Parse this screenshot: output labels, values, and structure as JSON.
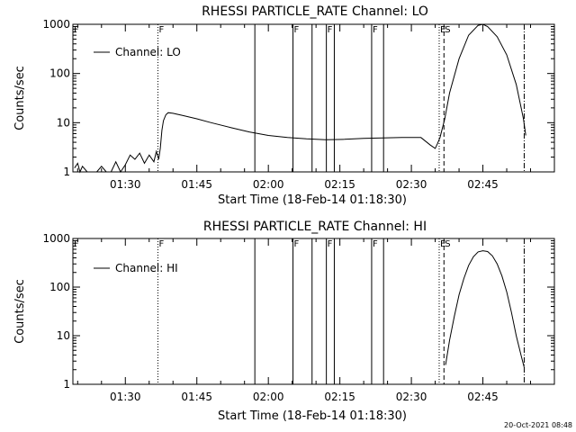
{
  "footer_timestamp": "20-Oct-2021 08:48",
  "marker_labels": {
    "F": "F",
    "E": "E",
    "S": "S"
  },
  "chart_data": [
    {
      "type": "line",
      "title": "RHESSI PARTICLE_RATE Channel: LO",
      "xlabel": "Start Time (18-Feb-14 01:18:30)",
      "ylabel": "Counts/sec",
      "yscale": "log",
      "ylim": [
        1,
        1000
      ],
      "y_ticks": [
        "1",
        "10",
        "100",
        "1000"
      ],
      "xlim": [
        "01:19:00",
        "03:00:00"
      ],
      "x_tick_labels": [
        "01:30",
        "01:45",
        "02:00",
        "02:15",
        "02:30",
        "02:45"
      ],
      "legend": {
        "label": "Channel: LO",
        "position": "top-left"
      },
      "series": [
        {
          "name": "Channel: LO",
          "x": [
            "01:19:20",
            "01:20:00",
            "01:20:30",
            "01:21:00",
            "01:22:00",
            "01:23:00",
            "01:24:00",
            "01:25:00",
            "01:26:00",
            "01:27:00",
            "01:28:00",
            "01:29:00",
            "01:30:00",
            "01:31:00",
            "01:32:00",
            "01:33:00",
            "01:34:00",
            "01:35:00",
            "01:36:00",
            "01:36:30",
            "01:37:00",
            "01:37:20",
            "01:37:40",
            "01:38:00",
            "01:38:30",
            "01:39:00",
            "01:40:00",
            "01:42:00",
            "01:45:00",
            "01:48:00",
            "01:52:00",
            "01:56:00",
            "02:00:00",
            "02:04:00",
            "02:08:00",
            "02:12:00",
            "02:16:00",
            "02:20:00",
            "02:24:00",
            "02:28:00",
            "02:32:00",
            "02:34:00",
            "02:35:00",
            "02:35:30",
            "02:36:00",
            "02:37:00",
            "02:38:00",
            "02:40:00",
            "02:42:00",
            "02:44:00",
            "02:45:00",
            "02:46:00",
            "02:48:00",
            "02:50:00",
            "02:52:00",
            "02:53:30",
            "02:54:00"
          ],
          "y": [
            1.2,
            1.5,
            1.0,
            1.3,
            1.0,
            1.0,
            1.0,
            1.3,
            1.0,
            1.0,
            1.6,
            1.0,
            1.4,
            2.2,
            1.8,
            2.4,
            1.5,
            2.2,
            1.6,
            2.6,
            1.8,
            3.0,
            7.0,
            11.0,
            14.5,
            16.0,
            15.5,
            14.0,
            12.0,
            10.0,
            8.0,
            6.5,
            5.5,
            5.0,
            4.7,
            4.5,
            4.6,
            4.8,
            4.9,
            5.0,
            5.0,
            3.5,
            3.0,
            3.8,
            5.0,
            12.0,
            40.0,
            200.0,
            600.0,
            950.0,
            1000.0,
            900.0,
            560.0,
            240.0,
            60.0,
            12.0,
            5.5
          ]
        }
      ],
      "vertical_lines": [
        {
          "style": "dotted",
          "x": "01:36:50",
          "label": "F"
        },
        {
          "style": "solid",
          "x": "01:57:10"
        },
        {
          "style": "solid",
          "x": "02:05:10",
          "label": "F"
        },
        {
          "style": "solid",
          "x": "02:09:10"
        },
        {
          "style": "solid",
          "x": "02:12:10",
          "label": "F"
        },
        {
          "style": "solid",
          "x": "02:13:50"
        },
        {
          "style": "solid",
          "x": "02:21:40",
          "label": "F"
        },
        {
          "style": "solid",
          "x": "02:24:10"
        },
        {
          "style": "dotted",
          "x": "02:35:50",
          "label": "E"
        },
        {
          "style": "dashed",
          "x": "02:36:50",
          "label": "S"
        },
        {
          "style": "dashdot",
          "x": "02:53:40"
        }
      ],
      "left_edge_marker": "F"
    },
    {
      "type": "line",
      "title": "RHESSI PARTICLE_RATE Channel: HI",
      "xlabel": "Start Time (18-Feb-14 01:18:30)",
      "ylabel": "Counts/sec",
      "yscale": "log",
      "ylim": [
        1,
        1000
      ],
      "y_ticks": [
        "1",
        "10",
        "100",
        "1000"
      ],
      "xlim": [
        "01:19:00",
        "03:00:00"
      ],
      "x_tick_labels": [
        "01:30",
        "01:45",
        "02:00",
        "02:15",
        "02:30",
        "02:45"
      ],
      "legend": {
        "label": "Channel: HI",
        "position": "top-left"
      },
      "series": [
        {
          "name": "Channel: HI",
          "x": [
            "02:37:10",
            "02:38:00",
            "02:39:00",
            "02:40:00",
            "02:41:00",
            "02:42:00",
            "02:43:00",
            "02:44:00",
            "02:45:00",
            "02:46:00",
            "02:47:00",
            "02:48:00",
            "02:49:00",
            "02:50:00",
            "02:51:00",
            "02:52:00",
            "02:53:00",
            "02:53:40"
          ],
          "y": [
            2.5,
            8.0,
            25.0,
            70.0,
            150.0,
            280.0,
            420.0,
            530.0,
            560.0,
            540.0,
            440.0,
            300.0,
            170.0,
            80.0,
            30.0,
            10.0,
            4.0,
            2.2
          ]
        }
      ],
      "vertical_lines": [
        {
          "style": "dotted",
          "x": "01:36:50",
          "label": "F"
        },
        {
          "style": "solid",
          "x": "01:57:10"
        },
        {
          "style": "solid",
          "x": "02:05:10",
          "label": "F"
        },
        {
          "style": "solid",
          "x": "02:09:10"
        },
        {
          "style": "solid",
          "x": "02:12:10",
          "label": "F"
        },
        {
          "style": "solid",
          "x": "02:13:50"
        },
        {
          "style": "solid",
          "x": "02:21:40",
          "label": "F"
        },
        {
          "style": "solid",
          "x": "02:24:10"
        },
        {
          "style": "dotted",
          "x": "02:35:50",
          "label": "E"
        },
        {
          "style": "dashed",
          "x": "02:36:50",
          "label": "S"
        },
        {
          "style": "dashdot",
          "x": "02:53:40"
        }
      ],
      "left_edge_marker": "F"
    }
  ]
}
